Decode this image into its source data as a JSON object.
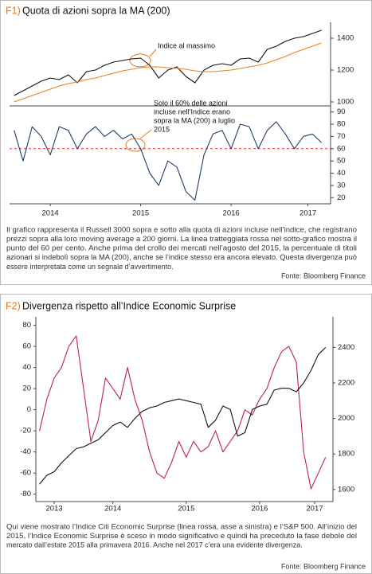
{
  "chart_data": [
    {
      "type": "line",
      "label": "F1)",
      "title": "Quota di azioni sopra la MA (200)",
      "x": [
        2014.1,
        2014.2,
        2014.3,
        2014.4,
        2014.5,
        2014.6,
        2014.7,
        2014.8,
        2014.9,
        2015.0,
        2015.1,
        2015.2,
        2015.3,
        2015.4,
        2015.5,
        2015.6,
        2015.7,
        2015.8,
        2015.9,
        2016.0,
        2016.1,
        2016.2,
        2016.3,
        2016.4,
        2016.5,
        2016.6,
        2016.7,
        2016.8,
        2016.9,
        2017.0,
        2017.1,
        2017.2,
        2017.3,
        2017.4,
        2017.5
      ],
      "xlim": [
        2014.05,
        2017.6
      ],
      "xticks": [
        {
          "value": 2014.5,
          "label": "2014"
        },
        {
          "value": 2015.5,
          "label": "2015"
        },
        {
          "value": 2016.5,
          "label": "2016"
        },
        {
          "value": 2017.35,
          "label": "2017"
        }
      ],
      "panels": [
        {
          "ylim": [
            975,
            1500
          ],
          "yticks": [
            1000,
            1200,
            1400
          ],
          "series": [
            {
              "color": "#111111",
              "values": [
                1040,
                1070,
                1100,
                1130,
                1150,
                1140,
                1170,
                1120,
                1190,
                1200,
                1230,
                1250,
                1260,
                1270,
                1275,
                1230,
                1150,
                1200,
                1220,
                1160,
                1120,
                1200,
                1230,
                1240,
                1230,
                1270,
                1275,
                1250,
                1330,
                1350,
                1380,
                1400,
                1410,
                1430,
                1450
              ]
            },
            {
              "color": "#e8801f",
              "values": [
                1000,
                1020,
                1040,
                1060,
                1080,
                1100,
                1115,
                1125,
                1140,
                1150,
                1165,
                1180,
                1195,
                1205,
                1215,
                1220,
                1220,
                1215,
                1210,
                1205,
                1195,
                1190,
                1190,
                1195,
                1200,
                1210,
                1220,
                1230,
                1245,
                1265,
                1285,
                1310,
                1330,
                1350,
                1370
              ]
            }
          ]
        },
        {
          "ylim": [
            15,
            93
          ],
          "yticks": [
            20,
            30,
            40,
            50,
            60,
            70,
            80,
            90
          ],
          "reference_line": 60,
          "reference_color": "#e0302a",
          "series": [
            {
              "color": "#1f3d6b",
              "values": [
                75,
                50,
                78,
                70,
                55,
                78,
                75,
                60,
                72,
                78,
                70,
                75,
                68,
                72,
                60,
                40,
                30,
                50,
                45,
                25,
                18,
                55,
                72,
                75,
                60,
                80,
                78,
                60,
                75,
                82,
                72,
                60,
                70,
                72,
                65
              ]
            }
          ]
        }
      ],
      "annotations": [
        {
          "lines": [
            "Indice al massimo"
          ]
        },
        {
          "lines": [
            "Solo il 60% delle azioni",
            "incluse nell’Indice erano",
            "sopra la MA (200) a luglio",
            "2015"
          ]
        }
      ],
      "caption": [
        "Il grafico rappresenta il Russell 3000 sopra e sotto alla quota di azioni incluse nell’indice, che registrano",
        "prezzi sopra alla loro moving average a 200 giorni. La linea tratteggiata rossa nel sotto-grafico mostra il",
        "punto del 60 per cento. Anche prima del crollo dei mercati nell’agosto del 2015, la percentuale di titoli",
        "azionari si indebolì sopra la MA (200), anche se l’indice stesso era ancora elevato. Questa divergenza può",
        "essere interpretata come un segnale d’avvertimento."
      ],
      "source": "Fonte: Bloomberg Finance"
    },
    {
      "type": "line",
      "label": "F2)",
      "title": "Divergenza rispetto all’Indice Economic Surprise",
      "x": [
        2013.5,
        2013.6,
        2013.7,
        2013.8,
        2013.9,
        2014.0,
        2014.1,
        2014.2,
        2014.3,
        2014.4,
        2014.5,
        2014.6,
        2014.7,
        2014.8,
        2014.9,
        2015.0,
        2015.1,
        2015.2,
        2015.3,
        2015.4,
        2015.5,
        2015.6,
        2015.7,
        2015.8,
        2015.9,
        2016.0,
        2016.1,
        2016.2,
        2016.3,
        2016.4,
        2016.5,
        2016.6,
        2016.7,
        2016.8,
        2016.9,
        2017.0,
        2017.1,
        2017.2,
        2017.3,
        2017.4
      ],
      "xlim": [
        2013.45,
        2017.5
      ],
      "xticks": [
        {
          "value": 2013.7,
          "label": "2013"
        },
        {
          "value": 2014.5,
          "label": "2014"
        },
        {
          "value": 2015.5,
          "label": "2015"
        },
        {
          "value": 2016.5,
          "label": "2016"
        },
        {
          "value": 2017.25,
          "label": "2017"
        }
      ],
      "ylim": [
        -87,
        88
      ],
      "yticks": [
        -80,
        -60,
        -40,
        -20,
        0,
        20,
        40,
        60,
        80
      ],
      "y2lim": [
        1532,
        2572
      ],
      "y2ticks": [
        1600,
        1800,
        2000,
        2200,
        2400
      ],
      "series": [
        {
          "color": "#c41e4a",
          "values": [
            -20,
            10,
            30,
            40,
            60,
            70,
            20,
            -30,
            -10,
            30,
            20,
            10,
            40,
            10,
            -10,
            -40,
            -60,
            -65,
            -50,
            -30,
            -45,
            -30,
            -40,
            -35,
            -20,
            -40,
            -30,
            -20,
            0,
            -5,
            10,
            20,
            40,
            55,
            60,
            45,
            -40,
            -75,
            -60,
            -45
          ]
        },
        {
          "color": "#111111",
          "axis": "y2",
          "values": [
            1630,
            1680,
            1700,
            1750,
            1790,
            1830,
            1840,
            1860,
            1880,
            1920,
            1960,
            1980,
            1950,
            2000,
            2040,
            2060,
            2070,
            2090,
            2100,
            2110,
            2100,
            2090,
            2080,
            1950,
            1990,
            2070,
            2050,
            1900,
            1920,
            2050,
            2070,
            2080,
            2160,
            2170,
            2170,
            2150,
            2200,
            2270,
            2360,
            2400
          ]
        }
      ],
      "caption": [
        "Qui viene mostrato l’Indice Citi Economic Surprise (linea rossa, asse a sinistra) e l’S&P 500. All’inizio del",
        "2015, l’Indice Economic Surprise è sceso in modo significativo e quindi ha preceduto la fase debole del",
        "mercato dall’estate 2015 alla primavera 2016. Anche nel 2017 c’era una evidente divergenza."
      ],
      "source": "Fonte: Bloomberg Finance"
    }
  ]
}
